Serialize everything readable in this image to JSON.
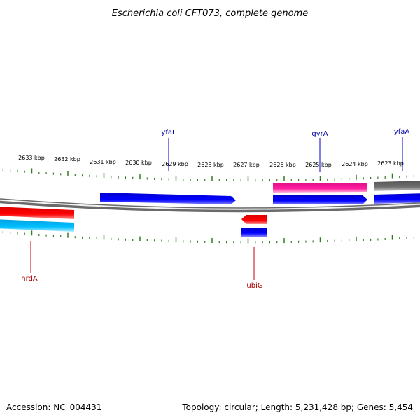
{
  "title": "Escherichia coli CFT073, complete genome",
  "footer": {
    "accession": "Accession: NC_004431",
    "topology": "Topology: circular; Length: 5,231,428 bp; Genes: 5,454"
  },
  "scale_labels": [
    "2633 kbp",
    "2632 kbp",
    "2631 kbp",
    "2630 kbp",
    "2629 kbp",
    "2628 kbp",
    "2627 kbp",
    "2626 kbp",
    "2625 kbp",
    "2624 kbp",
    "2623 kbp"
  ],
  "gene_labels": {
    "yfaL": "yfaL",
    "gyrA": "gyrA",
    "yfaA": "yfaA",
    "nrdA": "nrdA",
    "ubiG": "ubiG"
  },
  "colors": {
    "tick": "#2e7d1e",
    "backbone": "#888888",
    "forward_cds": "#0000ee",
    "reverse_cds": "#ee0000",
    "pink_feature": "#ee1493",
    "cyan_feature": "#00b4f0",
    "grey_feature": "#666666",
    "top_label_line": "#0000cc",
    "bottom_label_line": "#cc0000"
  }
}
